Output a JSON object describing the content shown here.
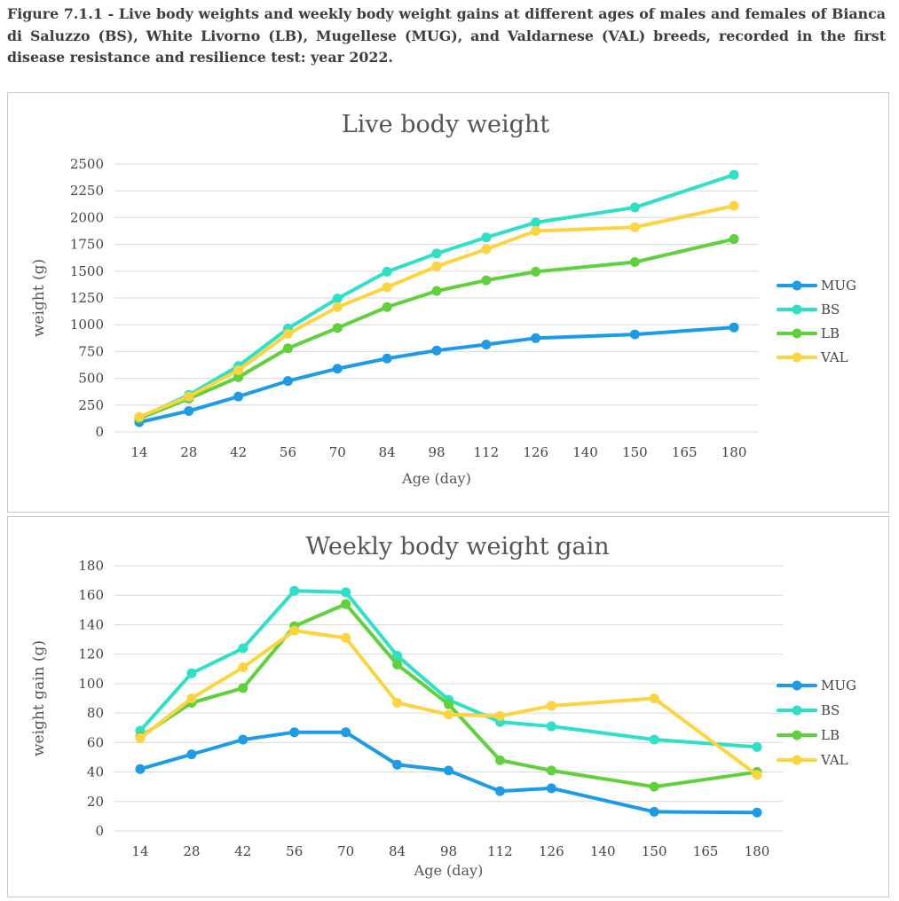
{
  "caption": "Figure 7.1.1 - Live body weights and weekly body weight gains at different ages of males and females of Bianca di Saluzzo (BS), White Livorno (LB), Mugellese (MUG), and Valdarnese (VAL) breeds, recorded in the first disease resistance and resilience test: year 2022.",
  "colors": {
    "MUG": "#1e9be6",
    "BS": "#2ee0c6",
    "LB": "#5fd13a",
    "VAL": "#fbd43f"
  },
  "chart_data": [
    {
      "type": "line",
      "title": "Live body weight",
      "xlabel": "Age (day)",
      "ylabel": "weight (g)",
      "categories": [
        "14",
        "28",
        "42",
        "56",
        "70",
        "84",
        "98",
        "112",
        "126",
        "140",
        "150",
        "165",
        "180"
      ],
      "ylim": [
        0,
        2500
      ],
      "yticks": [
        0,
        250,
        500,
        750,
        1000,
        1250,
        1500,
        1750,
        2000,
        2250,
        2500
      ],
      "grid": true,
      "legend": "right",
      "series": [
        {
          "name": "MUG",
          "values": [
            90,
            195,
            330,
            475,
            590,
            685,
            760,
            815,
            875,
            null,
            910,
            null,
            975
          ]
        },
        {
          "name": "BS",
          "values": [
            130,
            345,
            615,
            965,
            1245,
            1495,
            1665,
            1815,
            1955,
            null,
            2095,
            null,
            2400
          ]
        },
        {
          "name": "LB",
          "values": [
            125,
            310,
            510,
            780,
            970,
            1165,
            1315,
            1415,
            1495,
            null,
            1585,
            null,
            1800
          ]
        },
        {
          "name": "VAL",
          "values": [
            140,
            330,
            575,
            915,
            1165,
            1350,
            1545,
            1705,
            1875,
            null,
            1910,
            null,
            2110
          ]
        }
      ]
    },
    {
      "type": "line",
      "title": "Weekly body weight gain",
      "xlabel": "Age (day)",
      "ylabel": "weight gain (g)",
      "categories": [
        "14",
        "28",
        "42",
        "56",
        "70",
        "84",
        "98",
        "112",
        "126",
        "140",
        "150",
        "165",
        "180"
      ],
      "ylim": [
        0,
        180
      ],
      "yticks": [
        0,
        20,
        40,
        60,
        80,
        100,
        120,
        140,
        160,
        180
      ],
      "grid": true,
      "legend": "right",
      "series": [
        {
          "name": "MUG",
          "values": [
            42,
            52,
            62,
            67,
            67,
            45,
            41,
            27,
            29,
            null,
            13,
            null,
            12.5
          ]
        },
        {
          "name": "BS",
          "values": [
            68,
            107,
            124,
            163,
            162,
            119,
            89,
            74,
            71,
            null,
            62,
            null,
            57
          ]
        },
        {
          "name": "LB",
          "values": [
            64,
            87,
            97,
            139,
            154,
            113,
            86,
            48,
            41,
            null,
            30,
            null,
            40
          ]
        },
        {
          "name": "VAL",
          "values": [
            63,
            90,
            111,
            136,
            131,
            87,
            79,
            78,
            85,
            null,
            90,
            null,
            38
          ]
        }
      ]
    }
  ]
}
